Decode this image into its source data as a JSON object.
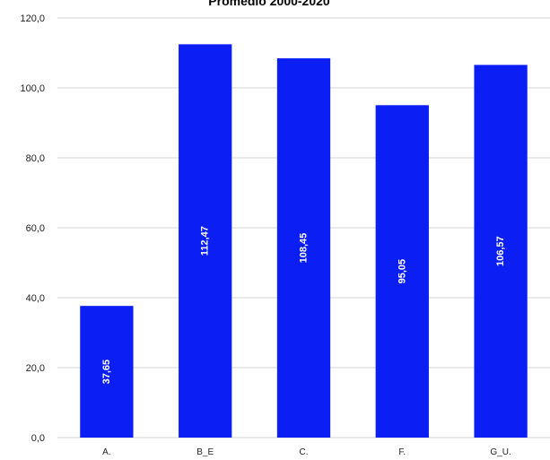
{
  "chart_data": {
    "type": "bar",
    "title": "Promedio 2000-2020",
    "categories": [
      "A.",
      "B_E",
      "C.",
      "F.",
      "G_U."
    ],
    "values": [
      37.65,
      112.47,
      108.45,
      95.05,
      106.57
    ],
    "data_labels": [
      "37,65",
      "112,47",
      "108,45",
      "95,05",
      "106,57"
    ],
    "y_ticks": [
      0,
      20,
      40,
      60,
      80,
      100,
      120
    ],
    "y_tick_labels": [
      "0,0",
      "20,0",
      "40,0",
      "60,0",
      "80,0",
      "100,0",
      "120,0"
    ],
    "ylim": [
      0,
      120
    ],
    "xlabel": "",
    "ylabel": "",
    "grid": true,
    "legend": "none",
    "bar_color": "#0b1ff5",
    "grid_color": "#d4d4d4"
  }
}
